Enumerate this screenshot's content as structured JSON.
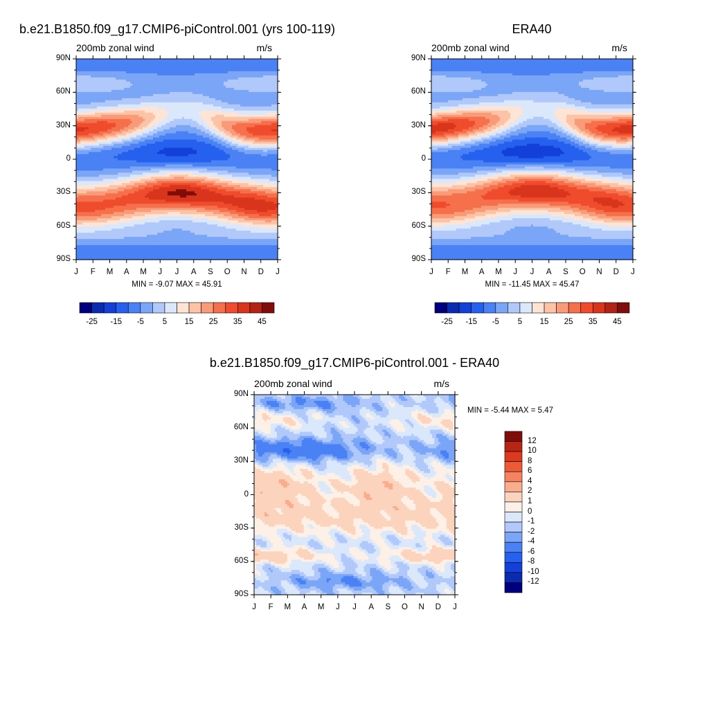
{
  "chart_data": [
    {
      "type": "heatmap",
      "id": "model",
      "title": "b.e21.B1850.f09_g17.CMIP6-piControl.001 (yrs 100-119)",
      "left_label": "200mb zonal wind",
      "right_label": "m/s",
      "x_ticks": [
        "J",
        "F",
        "M",
        "A",
        "M",
        "J",
        "J",
        "A",
        "S",
        "O",
        "N",
        "D",
        "J"
      ],
      "y_ticks": [
        "90N",
        "60N",
        "30N",
        "0",
        "30S",
        "60S",
        "90S"
      ],
      "y_values": [
        90,
        60,
        30,
        0,
        -30,
        -60,
        -90
      ],
      "stats": "MIN =  -9.07 MAX =  45.91",
      "colorbar_levels": [
        -30,
        -25,
        -20,
        -15,
        -10,
        -5,
        0,
        5,
        10,
        15,
        20,
        25,
        30,
        35,
        40,
        45
      ],
      "colorbar_labels": [
        "-25",
        "-15",
        "-5",
        "5",
        "15",
        "25",
        "35",
        "45"
      ],
      "features": {
        "nh_jet_lat": 29,
        "nh_jet_winter_max": 42,
        "sh_jet_lat": -30,
        "sh_jet_max": 46,
        "eq_min": -9
      }
    },
    {
      "type": "heatmap",
      "id": "obs",
      "title": "ERA40",
      "left_label": "200mb zonal wind",
      "right_label": "m/s",
      "x_ticks": [
        "J",
        "F",
        "M",
        "A",
        "M",
        "J",
        "J",
        "A",
        "S",
        "O",
        "N",
        "D",
        "J"
      ],
      "y_ticks": [
        "90N",
        "60N",
        "30N",
        "0",
        "30S",
        "60S",
        "90S"
      ],
      "y_values": [
        90,
        60,
        30,
        0,
        -30,
        -60,
        -90
      ],
      "stats": "MIN = -11.45 MAX =  45.47",
      "colorbar_levels": [
        -30,
        -25,
        -20,
        -15,
        -10,
        -5,
        0,
        5,
        10,
        15,
        20,
        25,
        30,
        35,
        40,
        45
      ],
      "colorbar_labels": [
        "-25",
        "-15",
        "-5",
        "5",
        "15",
        "25",
        "35",
        "45"
      ],
      "features": {
        "nh_jet_lat": 30,
        "nh_jet_winter_max": 44,
        "sh_jet_lat": -28,
        "sh_jet_max": 44,
        "eq_min": -11
      }
    },
    {
      "type": "heatmap",
      "id": "diff",
      "title": "b.e21.B1850.f09_g17.CMIP6-piControl.001 - ERA40",
      "left_label": "200mb zonal wind",
      "right_label": "m/s",
      "x_ticks": [
        "J",
        "F",
        "M",
        "A",
        "M",
        "J",
        "J",
        "A",
        "S",
        "O",
        "N",
        "D",
        "J"
      ],
      "y_ticks": [
        "90N",
        "60N",
        "30N",
        "0",
        "30S",
        "60S",
        "90S"
      ],
      "y_values": [
        90,
        60,
        30,
        0,
        -30,
        -60,
        -90
      ],
      "stats": "MIN =  -5.44 MAX =   5.47",
      "colorbar_levels": [
        -14,
        -12,
        -10,
        -8,
        -6,
        -4,
        -2,
        -1,
        0,
        1,
        2,
        4,
        6,
        8,
        10,
        12,
        14
      ],
      "colorbar_labels": [
        "12",
        "10",
        "8",
        "6",
        "4",
        "2",
        "1",
        "0",
        "-1",
        "-2",
        "-4",
        "-6",
        "-8",
        "-10",
        "-12"
      ]
    }
  ],
  "colors": {
    "main_palette": [
      "#00007f",
      "#0a2ab0",
      "#1240d8",
      "#2660ee",
      "#4a82f5",
      "#7ba6f8",
      "#b0c9fa",
      "#dbe8fc",
      "#fde4d4",
      "#fcc3a7",
      "#f99b78",
      "#f6704c",
      "#ef4c2d",
      "#d9341c",
      "#b22313",
      "#800d09"
    ],
    "diff_palette": [
      "#00007f",
      "#0a2ab0",
      "#1240d8",
      "#2660ee",
      "#4a82f5",
      "#7ba6f8",
      "#b0c9fa",
      "#dbe8fc",
      "#fdf0e6",
      "#fcd4bd",
      "#f9ad8e",
      "#f6835f",
      "#ef5a36",
      "#dc3a1f",
      "#b82515",
      "#800d09"
    ]
  }
}
